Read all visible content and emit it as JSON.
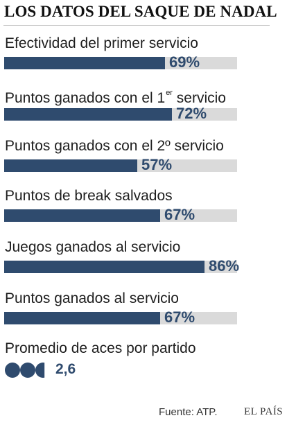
{
  "title": "LOS DATOS DEL SAQUE DE NADAL",
  "chart_data": {
    "type": "bar",
    "orientation": "horizontal",
    "title": "LOS DATOS DEL SAQUE DE NADAL",
    "xlim": [
      0,
      100
    ],
    "unit": "%",
    "categories": [
      "Efectividad del primer servicio",
      "Puntos ganados con el 1er servicio",
      "Puntos ganados con el 2º servicio",
      "Puntos de break salvados",
      "Juegos ganados al servicio",
      "Puntos ganados al servicio"
    ],
    "values": [
      69,
      72,
      57,
      67,
      86,
      67
    ],
    "value_labels": [
      "69%",
      "72%",
      "57%",
      "67%",
      "86%",
      "67%"
    ],
    "colors": {
      "bar": "#2f4b6e",
      "track": "#dadada",
      "value": "#2f4b6e"
    }
  },
  "stats": [
    {
      "label": "Efectividad del primer servicio",
      "sup": ""
    },
    {
      "label": "Puntos ganados con el 1",
      "sup": "er",
      "label_after": " servicio"
    },
    {
      "label": "Puntos ganados con el 2º servicio",
      "sup": ""
    },
    {
      "label": "Puntos de break salvados",
      "sup": ""
    },
    {
      "label": "Juegos ganados al servicio",
      "sup": ""
    },
    {
      "label": "Puntos ganados al servicio",
      "sup": ""
    }
  ],
  "aces": {
    "label": "Promedio de aces por partido",
    "value": 2.6,
    "value_text": "2,6",
    "icon": "tennis-ball-icon"
  },
  "footer": {
    "source": "Fuente: ATP.",
    "brand": "EL PAÍS"
  }
}
